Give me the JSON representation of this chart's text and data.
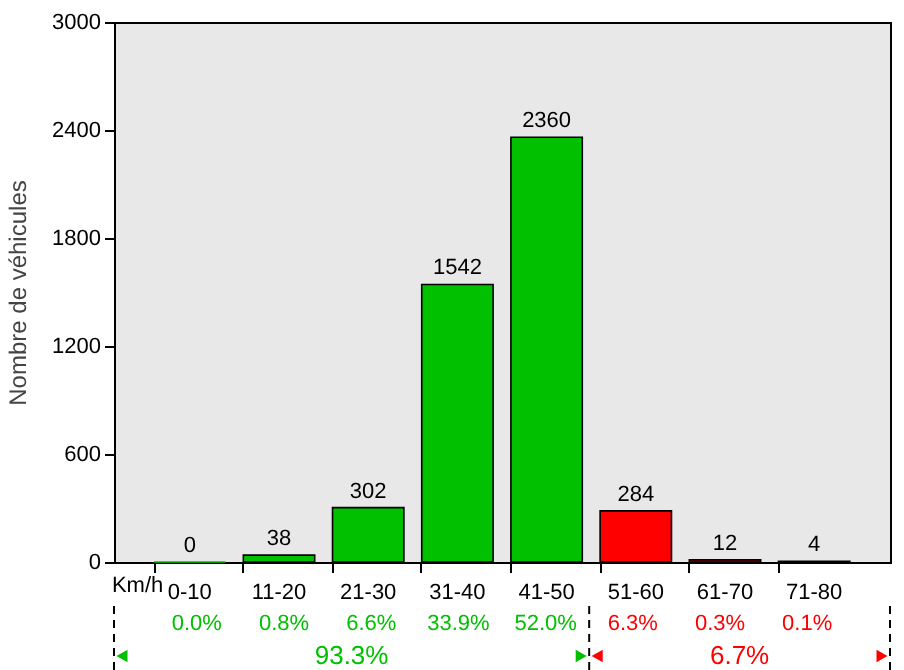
{
  "chart_data": {
    "type": "bar",
    "ylabel": "Nombre de véhicules",
    "xlabel": "Km/h",
    "categories": [
      "0-10",
      "11-20",
      "21-30",
      "31-40",
      "41-50",
      "51-60",
      "61-70",
      "71-80"
    ],
    "values": [
      0,
      38,
      302,
      1542,
      2360,
      284,
      12,
      4
    ],
    "colors": [
      "#00c000",
      "#00c000",
      "#00c000",
      "#00c000",
      "#00c000",
      "#ff0000",
      "#ff0000",
      "#ff0000"
    ],
    "ylim": [
      0,
      3000
    ],
    "yticks": [
      0,
      600,
      1200,
      1800,
      2400,
      3000
    ],
    "grid": false,
    "data_labels": true,
    "annotations": [
      "0.0%",
      "0.8%",
      "6.6%",
      "33.9%",
      "52.0%",
      "6.3%",
      "0.3%",
      "0.1%",
      "93.3%",
      "6.7%"
    ]
  }
}
